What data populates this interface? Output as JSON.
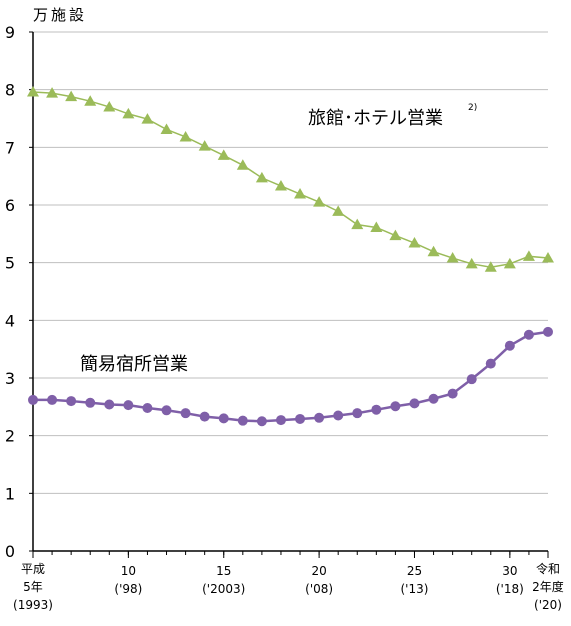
{
  "chart_data": {
    "type": "line",
    "y_label": "万施設",
    "x": [
      1993,
      1994,
      1995,
      1996,
      1997,
      1998,
      1999,
      2000,
      2001,
      2002,
      2003,
      2004,
      2005,
      2006,
      2007,
      2008,
      2009,
      2010,
      2011,
      2012,
      2013,
      2014,
      2015,
      2016,
      2017,
      2018,
      2019,
      2020
    ],
    "xlim": [
      1993,
      2020
    ],
    "xticks": [
      {
        "value": 1993,
        "label": "平成\n5年\n(1993)"
      },
      {
        "value": 1998,
        "label": "10\n('98)"
      },
      {
        "value": 2003,
        "label": "15\n('2003)"
      },
      {
        "value": 2008,
        "label": "20\n('08)"
      },
      {
        "value": 2013,
        "label": "25\n('13)"
      },
      {
        "value": 2018,
        "label": "30\n('18)"
      },
      {
        "value": 2020,
        "label": "令和\n2年度\n('20)"
      }
    ],
    "ylim": [
      0,
      9
    ],
    "yticks": [
      0,
      1,
      2,
      3,
      4,
      5,
      6,
      7,
      8,
      9
    ],
    "grid": true,
    "series": [
      {
        "name": "旅館･ホテル営業",
        "name_note": "2)",
        "color": "#9bbb59",
        "marker": "triangle",
        "values": [
          7.96,
          7.94,
          7.88,
          7.8,
          7.7,
          7.58,
          7.49,
          7.31,
          7.18,
          7.02,
          6.86,
          6.69,
          6.47,
          6.33,
          6.19,
          6.05,
          5.89,
          5.66,
          5.61,
          5.47,
          5.34,
          5.19,
          5.08,
          4.98,
          4.92,
          4.98,
          5.11,
          5.08
        ]
      },
      {
        "name": "簡易宿所営業",
        "color": "#7f5fa8",
        "marker": "circle",
        "values": [
          2.62,
          2.62,
          2.6,
          2.57,
          2.54,
          2.53,
          2.48,
          2.44,
          2.39,
          2.33,
          2.3,
          2.26,
          2.25,
          2.27,
          2.29,
          2.31,
          2.35,
          2.39,
          2.45,
          2.51,
          2.56,
          2.64,
          2.73,
          2.98,
          3.25,
          3.56,
          3.75,
          3.8
        ]
      }
    ]
  }
}
